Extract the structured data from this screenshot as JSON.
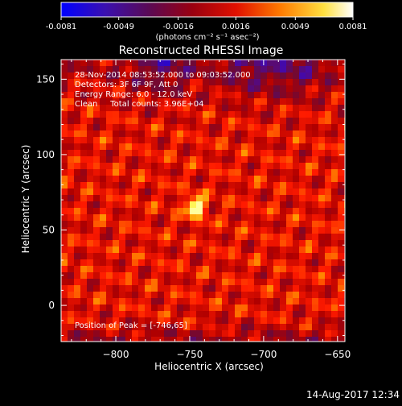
{
  "chart_data": {
    "type": "heatmap",
    "title": "Reconstructed RHESSI Image",
    "xlabel": "Heliocentric X (arcsec)",
    "ylabel": "Heliocentric Y (arcsec)",
    "xlim": [
      -837,
      -645
    ],
    "ylim": [
      -24,
      163
    ],
    "xticks": [
      -800,
      -750,
      -700,
      -650
    ],
    "yticks": [
      0,
      50,
      100,
      150
    ],
    "annotations": [
      "28-Nov-2014 08:53:52.000 to 09:03:52.000",
      "Detectors: 3F 6F 9F, Att 0",
      "Energy Range: 6.0 - 12.0 keV",
      "Clean     Total counts: 3.96E+04"
    ],
    "peak_label": "Position of Peak = [-746,65]",
    "peak": {
      "x": -746,
      "y": 65
    },
    "colorbar": {
      "min": -0.0081,
      "max": 0.0081,
      "ticks": [
        -0.0081,
        -0.0049,
        -0.0016,
        0.0016,
        0.0049,
        0.0081
      ],
      "tick_labels": [
        "-0.0081",
        "-0.0049",
        "-0.0016",
        "0.0016",
        "0.0049",
        "0.0081"
      ],
      "unit_label": "(photons cm⁻² s⁻¹ asec⁻²)",
      "colormap": [
        "#0000ff",
        "#4b0aa0",
        "#6a0a3a",
        "#b00000",
        "#ff1a00",
        "#ff9a00",
        "#ffff60",
        "#ffffff"
      ]
    },
    "grid": false
  },
  "footer": {
    "timestamp": "14-Aug-2017 12:34"
  }
}
